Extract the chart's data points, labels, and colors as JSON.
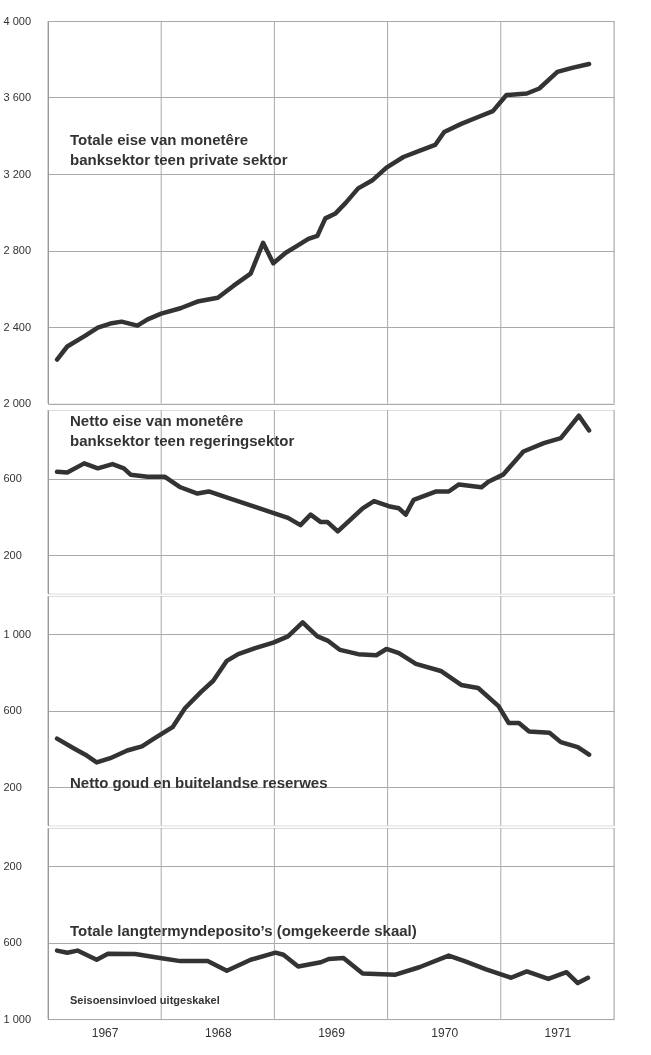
{
  "chart_data": [
    {
      "type": "line",
      "xlim": [
        1967,
        1972
      ],
      "ylim": [
        2000,
        4000
      ],
      "tick_labels": "y",
      "grid": true,
      "xticks": [
        {
          "value": 1967,
          "label": null
        },
        {
          "value": 1968,
          "label": null
        },
        {
          "value": 1969,
          "label": null
        },
        {
          "value": 1970,
          "label": null
        },
        {
          "value": 1971,
          "label": null
        },
        {
          "value": 1972,
          "label": null
        }
      ],
      "yticks": [
        {
          "value": 2000,
          "label": "2 000"
        },
        {
          "value": 2400,
          "label": "2 400"
        },
        {
          "value": 2800,
          "label": "2 800"
        },
        {
          "value": 3200,
          "label": "3 200"
        },
        {
          "value": 3600,
          "label": "3 600"
        },
        {
          "value": 4000,
          "label": "4 000"
        }
      ],
      "series": [
        {
          "name": "Totale eise van monetêre\nbanksektor teen private sektor",
          "color": "#333333",
          "x": [
            1967.08,
            1967.17,
            1967.33,
            1967.44,
            1967.55,
            1967.65,
            1967.79,
            1967.88,
            1968.0,
            1968.17,
            1968.32,
            1968.5,
            1968.64,
            1968.79,
            1968.9,
            1968.99,
            1969.1,
            1969.19,
            1969.3,
            1969.38,
            1969.45,
            1969.54,
            1969.63,
            1969.74,
            1969.87,
            1969.99,
            1970.14,
            1970.28,
            1970.42,
            1970.5,
            1970.65,
            1970.8,
            1970.93,
            1971.05,
            1971.23,
            1971.34,
            1971.5,
            1971.63,
            1971.78
          ],
          "values": [
            2230,
            2298,
            2355,
            2397,
            2418,
            2428,
            2407,
            2440,
            2470,
            2498,
            2533,
            2553,
            2616,
            2679,
            2840,
            2733,
            2788,
            2820,
            2861,
            2877,
            2968,
            2994,
            3049,
            3125,
            3169,
            3233,
            3289,
            3321,
            3352,
            3420,
            3462,
            3498,
            3529,
            3613,
            3621,
            3647,
            3734,
            3755,
            3775
          ]
        }
      ]
    },
    {
      "type": "line",
      "xlim": [
        1967,
        1972
      ],
      "ylim": [
        0,
        960
      ],
      "tick_labels": "y",
      "grid": true,
      "xticks": [
        {
          "value": 1967,
          "label": null
        },
        {
          "value": 1968,
          "label": null
        },
        {
          "value": 1969,
          "label": null
        },
        {
          "value": 1970,
          "label": null
        },
        {
          "value": 1971,
          "label": null
        },
        {
          "value": 1972,
          "label": null
        }
      ],
      "yticks": [
        200,
        600
      ],
      "series": [
        {
          "name": "Netto eise van monetêre\nbanksektor teen regeringsektor",
          "color": "#333333",
          "x": [
            1967.08,
            1967.17,
            1967.32,
            1967.44,
            1967.57,
            1967.67,
            1967.73,
            1967.88,
            1968.03,
            1968.17,
            1968.32,
            1968.42,
            1968.61,
            1968.83,
            1969.12,
            1969.23,
            1969.32,
            1969.41,
            1969.47,
            1969.56,
            1969.78,
            1969.88,
            1970.01,
            1970.1,
            1970.16,
            1970.23,
            1970.43,
            1970.54,
            1970.63,
            1970.83,
            1970.89,
            1971.02,
            1971.2,
            1971.38,
            1971.53,
            1971.69,
            1971.78
          ],
          "values": [
            637,
            633,
            681,
            655,
            677,
            655,
            622,
            611,
            611,
            556,
            523,
            534,
            497,
            453,
            396,
            358,
            413,
            374,
            374,
            325,
            446,
            484,
            457,
            446,
            413,
            490,
            534,
            534,
            571,
            556,
            585,
            622,
            743,
            787,
            813,
            930,
            853
          ]
        }
      ]
    },
    {
      "type": "line",
      "xlim": [
        1967,
        1972
      ],
      "ylim": [
        0,
        1200
      ],
      "tick_labels": "y",
      "grid": true,
      "xticks": [
        {
          "value": 1967,
          "label": null
        },
        {
          "value": 1968,
          "label": null
        },
        {
          "value": 1969,
          "label": null
        },
        {
          "value": 1970,
          "label": null
        },
        {
          "value": 1971,
          "label": null
        },
        {
          "value": 1972,
          "label": null
        }
      ],
      "yticks": [
        200,
        600,
        {
          "value": 1000,
          "label": "1 000"
        }
      ],
      "series": [
        {
          "name": "Netto goud en buitelandse  reserwes",
          "color": "#333333",
          "x": [
            1967.08,
            1967.23,
            1967.33,
            1967.43,
            1967.55,
            1967.7,
            1967.83,
            1967.95,
            1968.1,
            1968.21,
            1968.35,
            1968.46,
            1968.58,
            1968.68,
            1968.83,
            1968.99,
            1969.12,
            1969.25,
            1969.3,
            1969.38,
            1969.47,
            1969.58,
            1969.74,
            1969.9,
            1969.99,
            1970.1,
            1970.25,
            1970.47,
            1970.65,
            1970.8,
            1970.98,
            1971.07,
            1971.16,
            1971.25,
            1971.43,
            1971.53,
            1971.68,
            1971.78
          ],
          "values": [
            454,
            403,
            370,
            330,
            352,
            392,
            414,
            459,
            514,
            613,
            697,
            757,
            861,
            896,
            927,
            956,
            989,
            1062,
            1033,
            989,
            967,
            918,
            896,
            890,
            923,
            901,
            845,
            808,
            735,
            719,
            624,
            536,
            536,
            492,
            485,
            436,
            410,
            370
          ]
        }
      ]
    },
    {
      "type": "line",
      "xlim": [
        1967,
        1972
      ],
      "ylim": [
        1000,
        0
      ],
      "grid": true,
      "xticks": [
        {
          "value": 1967,
          "label": null
        },
        {
          "value": 1967.5,
          "label": "1967"
        },
        {
          "value": 1968,
          "label": null
        },
        {
          "value": 1968.5,
          "label": "1968"
        },
        {
          "value": 1969,
          "label": null
        },
        {
          "value": 1969.5,
          "label": "1969"
        },
        {
          "value": 1970,
          "label": null
        },
        {
          "value": 1970.5,
          "label": "1970"
        },
        {
          "value": 1971,
          "label": null
        },
        {
          "value": 1971.5,
          "label": "1971"
        },
        {
          "value": 1972,
          "label": null
        }
      ],
      "yticks": [
        200,
        600,
        {
          "value": 1000,
          "label": "1 000"
        }
      ],
      "annotations": [
        "Seisoensinvloed uitgeskakel"
      ],
      "series": [
        {
          "name": "Totale langtermyndeposito’s (omgekeerde skaal)",
          "color": "#333333",
          "x": [
            1967.08,
            1967.17,
            1967.26,
            1967.43,
            1967.53,
            1967.77,
            1967.99,
            1968.17,
            1968.41,
            1968.58,
            1968.79,
            1969.01,
            1969.08,
            1969.21,
            1969.41,
            1969.48,
            1969.61,
            1969.78,
            1970.07,
            1970.28,
            1970.54,
            1970.68,
            1970.87,
            1971.09,
            1971.23,
            1971.42,
            1971.58,
            1971.68,
            1971.77
          ],
          "values": [
            641,
            652,
            641,
            689,
            657,
            659,
            680,
            696,
            696,
            746,
            689,
            652,
            663,
            724,
            702,
            685,
            680,
            761,
            767,
            728,
            667,
            696,
            739,
            783,
            750,
            789,
            754,
            811,
            783
          ]
        }
      ]
    }
  ]
}
